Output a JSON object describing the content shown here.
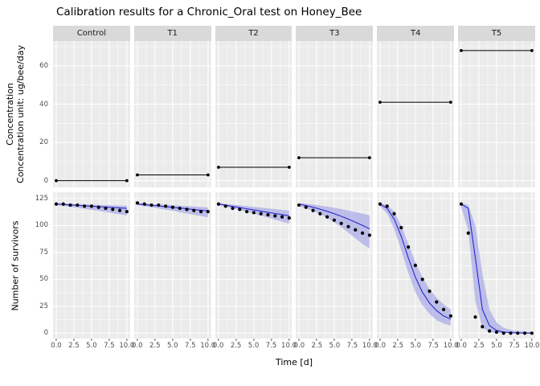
{
  "title": "Calibration results for a Chronic_Oral test on Honey_Bee",
  "axes": {
    "x_title": "Time [d]",
    "y_title_top_line1": "Concentration",
    "y_title_top_line2": "Concentration unit: ug/bee/day",
    "y_title_bottom": "Number of survivors"
  },
  "colors": {
    "panel_bg": "#ebebeb",
    "strip_bg": "#d9d9d9",
    "grid": "#ffffff",
    "fit_line": "#2828cf",
    "ribbon": "#9595e6",
    "dot": "#000000",
    "conc_line": "#000000"
  },
  "chart_data": {
    "type": "line",
    "title": "Calibration results for a Chronic_Oral test on Honey_Bee",
    "xlabel": "Time [d]",
    "x_range": [
      0,
      10
    ],
    "days": [
      0,
      1,
      2,
      3,
      4,
      5,
      6,
      7,
      8,
      9,
      10
    ],
    "x_ticks": [
      {
        "v": 0,
        "label": "0.0"
      },
      {
        "v": 2.5,
        "label": "2.5"
      },
      {
        "v": 5,
        "label": "5.0"
      },
      {
        "v": 7.5,
        "label": "7.5"
      },
      {
        "v": 10,
        "label": "10.0"
      }
    ],
    "top_panel": {
      "ylabel": "Concentration unit: ug/bee/day",
      "y_range": [
        -3.5,
        73
      ],
      "y_ticks": [
        {
          "v": 0,
          "label": "0"
        },
        {
          "v": 20,
          "label": "20"
        },
        {
          "v": 40,
          "label": "40"
        },
        {
          "v": 60,
          "label": "60"
        }
      ],
      "y_minor": [
        10,
        30,
        50,
        70
      ]
    },
    "bottom_panel": {
      "ylabel": "Number of survivors",
      "y_range": [
        -5,
        131
      ],
      "y_ticks": [
        {
          "v": 0,
          "label": "0"
        },
        {
          "v": 25,
          "label": "25"
        },
        {
          "v": 50,
          "label": "50"
        },
        {
          "v": 75,
          "label": "75"
        },
        {
          "v": 100,
          "label": "100"
        },
        {
          "v": 125,
          "label": "125"
        }
      ],
      "y_minor": [
        12.5,
        37.5,
        62.5,
        87.5,
        112.5
      ]
    },
    "x_minor": [
      1.25,
      3.75,
      6.25,
      8.75
    ],
    "facets": [
      {
        "name": "Control",
        "concentration": 0,
        "survivors": {
          "observed": [
            120,
            120,
            119,
            119,
            118,
            118,
            117,
            116,
            115,
            114,
            113
          ],
          "fitted": [
            120,
            119.6,
            119.2,
            118.8,
            118.4,
            118,
            117.6,
            117.2,
            116.8,
            116.4,
            116
          ],
          "lower": [
            119,
            118.2,
            117.4,
            116.5,
            115.6,
            114.6,
            113.6,
            112.6,
            111.5,
            110.4,
            109.3
          ],
          "upper": [
            121,
            120.6,
            120.3,
            120,
            119.8,
            119.5,
            119.3,
            119,
            118.8,
            118.6,
            118.4
          ]
        }
      },
      {
        "name": "T1",
        "concentration": 3,
        "survivors": {
          "observed": [
            121,
            120,
            119,
            119,
            118,
            117,
            116,
            115,
            114,
            113,
            113
          ],
          "fitted": [
            120,
            119.4,
            118.8,
            118.2,
            117.6,
            117,
            116.3,
            115.6,
            114.9,
            114.2,
            113.5
          ],
          "lower": [
            119,
            118,
            117,
            115.9,
            114.8,
            113.6,
            112.4,
            111.2,
            110,
            108.8,
            107.6
          ],
          "upper": [
            121,
            120.5,
            120.1,
            119.7,
            119.3,
            118.9,
            118.5,
            118.1,
            117.7,
            117.3,
            116.9
          ]
        }
      },
      {
        "name": "T2",
        "concentration": 7,
        "survivors": {
          "observed": [
            120,
            118,
            116,
            115,
            113,
            112,
            111,
            110,
            109,
            108,
            107
          ],
          "fitted": [
            120,
            118.9,
            117.8,
            116.7,
            115.6,
            114.5,
            113.4,
            112.3,
            111.2,
            110.1,
            109
          ],
          "lower": [
            119,
            117.5,
            116,
            114.4,
            112.7,
            111,
            109.2,
            107.4,
            105.5,
            103.6,
            101.7
          ],
          "upper": [
            121,
            120.2,
            119.5,
            118.8,
            118.1,
            117.4,
            116.7,
            116,
            115.3,
            114.6,
            113.9
          ]
        }
      },
      {
        "name": "T3",
        "concentration": 12,
        "survivors": {
          "observed": [
            119,
            117,
            114,
            111,
            108,
            105,
            102,
            99,
            96,
            93,
            91
          ],
          "fitted": [
            120,
            118.6,
            117,
            115.2,
            113.2,
            111,
            108.6,
            106,
            103.2,
            100.2,
            97
          ],
          "lower": [
            118,
            116,
            113.5,
            110.5,
            107,
            103,
            98.5,
            93.5,
            88,
            83,
            79
          ],
          "upper": [
            121,
            120.3,
            119.5,
            118.6,
            117.6,
            116.5,
            115.3,
            114,
            112.6,
            111.1,
            109.5
          ]
        }
      },
      {
        "name": "T4",
        "concentration": 41,
        "survivors": {
          "observed": [
            120,
            118,
            111,
            98,
            80,
            63,
            50,
            39,
            29,
            22,
            16
          ],
          "fitted": [
            120,
            116,
            106,
            90,
            70,
            52,
            38,
            28,
            21,
            16,
            13
          ],
          "lower": [
            118,
            111,
            97,
            77,
            56,
            38,
            26,
            18,
            12,
            9,
            7
          ],
          "upper": [
            121,
            119,
            113,
            100,
            83,
            66,
            52,
            41,
            33,
            27,
            22
          ]
        }
      },
      {
        "name": "T5",
        "concentration": 68,
        "survivors": {
          "observed": [
            120,
            93,
            15,
            6,
            2,
            1,
            0,
            0,
            0,
            0,
            0
          ],
          "fitted": [
            120,
            116,
            70,
            22,
            7,
            2.5,
            1,
            0.5,
            0.2,
            0.1,
            0
          ],
          "lower": [
            117,
            95,
            30,
            5,
            1,
            0,
            0,
            0,
            0,
            0,
            0
          ],
          "upper": [
            121,
            119,
            100,
            55,
            22,
            10,
            5,
            3,
            2,
            1.5,
            1
          ]
        }
      }
    ]
  }
}
